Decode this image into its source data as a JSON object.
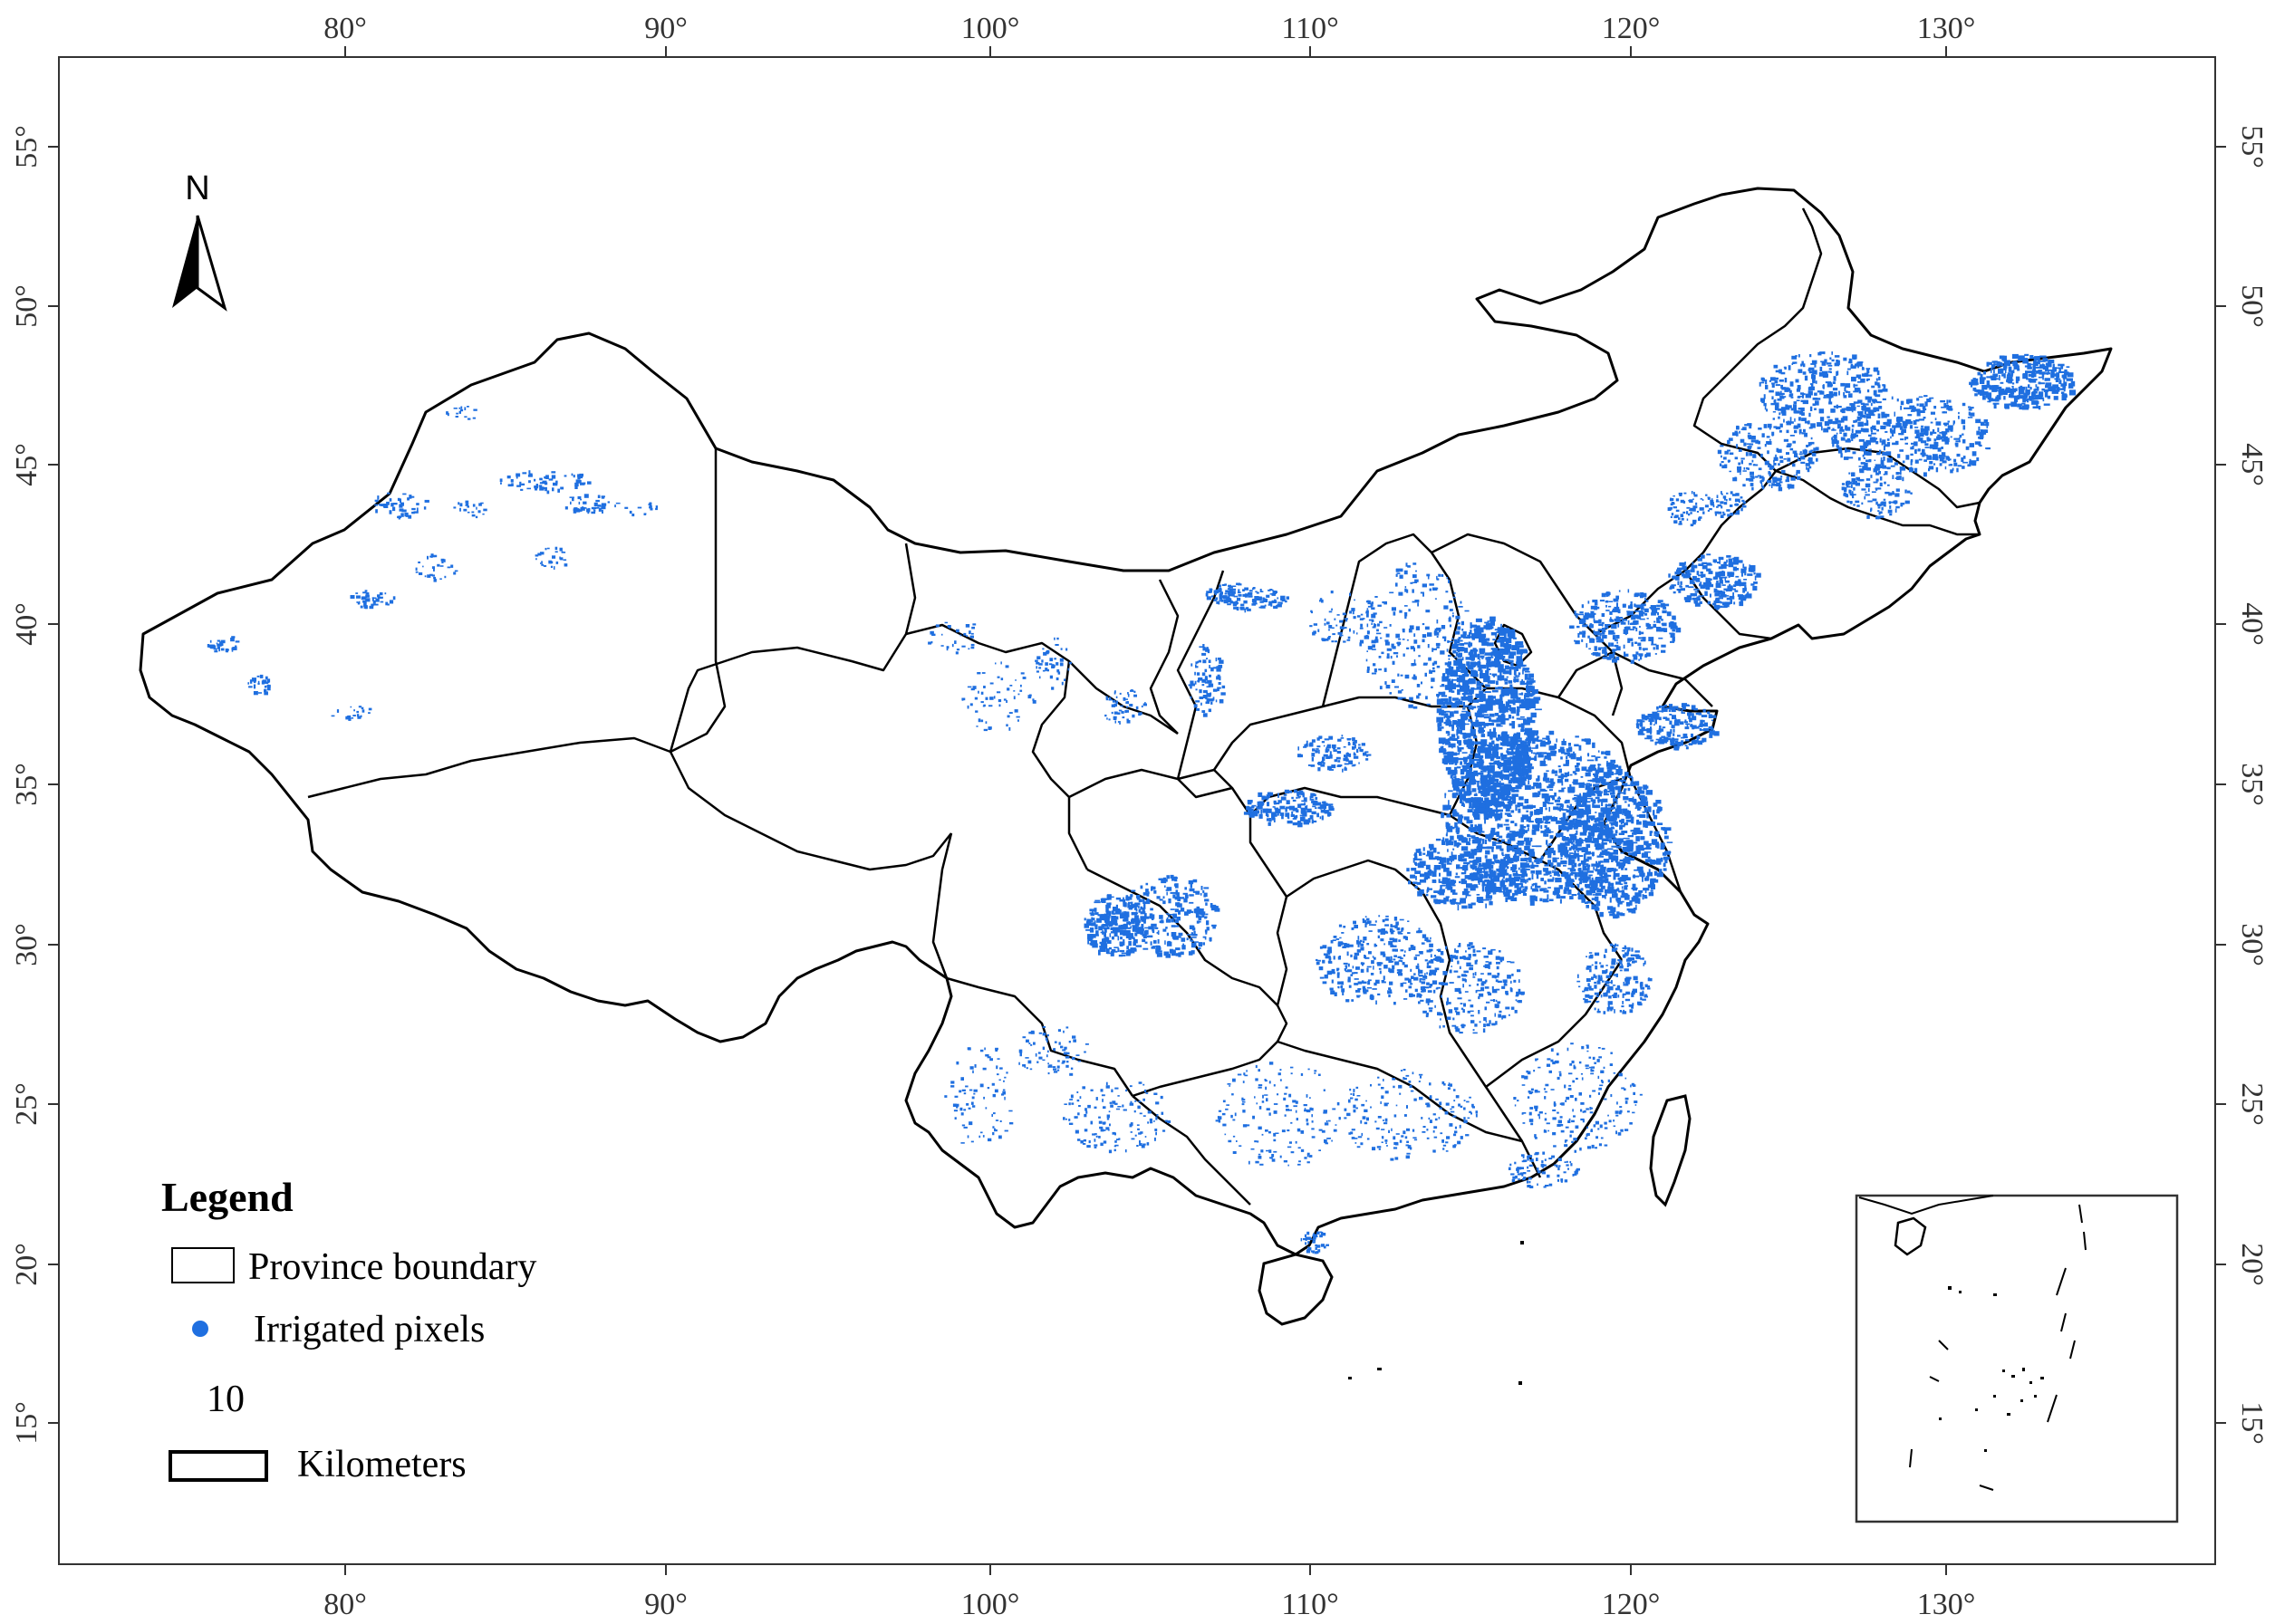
{
  "map": {
    "north_label": "N",
    "lon_ticks": [
      "80°",
      "90°",
      "100°",
      "110°",
      "120°",
      "130°"
    ],
    "lat_ticks": [
      "55°",
      "50°",
      "45°",
      "40°",
      "35°",
      "30°",
      "25°",
      "20°",
      "15°"
    ]
  },
  "legend": {
    "title": "Legend",
    "items": [
      {
        "label": "Province boundary"
      },
      {
        "label": "Irrigated pixels",
        "color": "#1f6fe0"
      }
    ],
    "scale_value": "10",
    "scale_unit": "Kilometers"
  },
  "colors": {
    "irrigated": "#1f6fe0",
    "boundary": "#000000",
    "frame": "#333333"
  }
}
